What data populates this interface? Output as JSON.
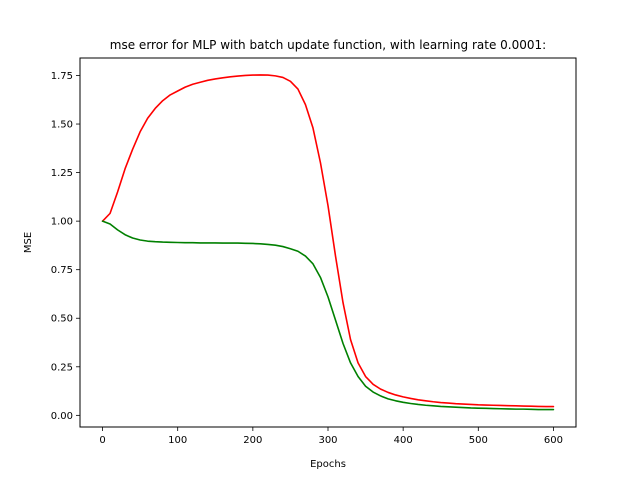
{
  "chart_data": {
    "type": "line",
    "title": "mse error for MLP with batch update function, with learning rate 0.0001:",
    "xlabel": "Epochs",
    "ylabel": "MSE",
    "xlim": [
      -30,
      630
    ],
    "ylim": [
      -0.06,
      1.84
    ],
    "xticks": [
      0,
      100,
      200,
      300,
      400,
      500,
      600
    ],
    "yticks": [
      0.0,
      0.25,
      0.5,
      0.75,
      1.0,
      1.25,
      1.5,
      1.75
    ],
    "xtick_labels": [
      "0",
      "100",
      "200",
      "300",
      "400",
      "500",
      "600"
    ],
    "ytick_labels": [
      "0.00",
      "0.25",
      "0.50",
      "0.75",
      "1.00",
      "1.25",
      "1.50",
      "1.75"
    ],
    "grid": false,
    "legend": "none",
    "series": [
      {
        "color": "#ff0000",
        "x": [
          0,
          10,
          20,
          30,
          40,
          50,
          60,
          70,
          80,
          90,
          100,
          110,
          120,
          130,
          140,
          150,
          160,
          170,
          180,
          190,
          200,
          210,
          220,
          230,
          240,
          250,
          260,
          270,
          280,
          290,
          300,
          310,
          320,
          330,
          340,
          350,
          360,
          370,
          380,
          390,
          400,
          410,
          420,
          430,
          440,
          450,
          460,
          470,
          480,
          490,
          500,
          510,
          520,
          530,
          540,
          550,
          560,
          570,
          580,
          590,
          600
        ],
        "y": [
          1.0,
          1.04,
          1.15,
          1.27,
          1.37,
          1.46,
          1.53,
          1.58,
          1.62,
          1.65,
          1.67,
          1.69,
          1.705,
          1.715,
          1.725,
          1.732,
          1.738,
          1.743,
          1.747,
          1.75,
          1.752,
          1.753,
          1.752,
          1.748,
          1.74,
          1.72,
          1.68,
          1.6,
          1.48,
          1.3,
          1.08,
          0.82,
          0.58,
          0.39,
          0.27,
          0.2,
          0.16,
          0.135,
          0.118,
          0.105,
          0.095,
          0.087,
          0.08,
          0.075,
          0.07,
          0.066,
          0.063,
          0.06,
          0.058,
          0.056,
          0.054,
          0.053,
          0.052,
          0.051,
          0.05,
          0.049,
          0.048,
          0.047,
          0.046,
          0.045,
          0.045
        ]
      },
      {
        "color": "#008000",
        "x": [
          0,
          10,
          20,
          30,
          40,
          50,
          60,
          70,
          80,
          90,
          100,
          110,
          120,
          130,
          140,
          150,
          160,
          170,
          180,
          190,
          200,
          210,
          220,
          230,
          240,
          250,
          260,
          270,
          280,
          290,
          300,
          310,
          320,
          330,
          340,
          350,
          360,
          370,
          380,
          390,
          400,
          410,
          420,
          430,
          440,
          450,
          460,
          470,
          480,
          490,
          500,
          510,
          520,
          530,
          540,
          550,
          560,
          570,
          580,
          590,
          600
        ],
        "y": [
          1.0,
          0.985,
          0.955,
          0.93,
          0.913,
          0.903,
          0.897,
          0.894,
          0.892,
          0.891,
          0.89,
          0.889,
          0.889,
          0.888,
          0.888,
          0.888,
          0.887,
          0.887,
          0.887,
          0.886,
          0.885,
          0.883,
          0.88,
          0.876,
          0.869,
          0.858,
          0.845,
          0.82,
          0.78,
          0.71,
          0.61,
          0.49,
          0.37,
          0.27,
          0.2,
          0.15,
          0.12,
          0.1,
          0.085,
          0.075,
          0.067,
          0.061,
          0.056,
          0.052,
          0.049,
          0.046,
          0.044,
          0.042,
          0.04,
          0.038,
          0.037,
          0.036,
          0.035,
          0.034,
          0.033,
          0.032,
          0.032,
          0.031,
          0.03,
          0.03,
          0.03
        ]
      }
    ]
  }
}
